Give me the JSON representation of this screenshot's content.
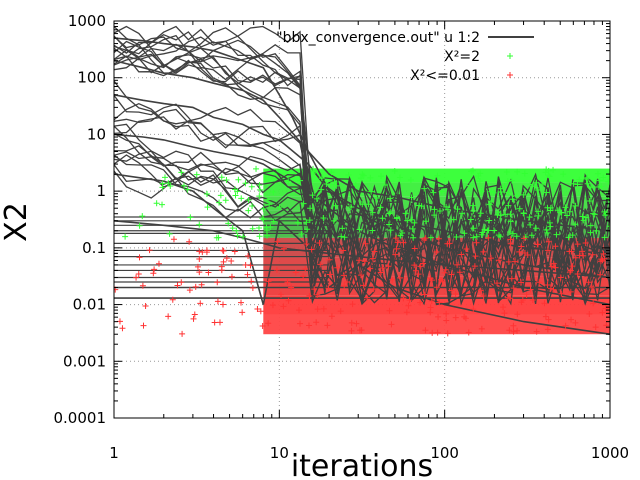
{
  "chart_data": {
    "type": "line",
    "xlabel": "iterations",
    "ylabel": "X2",
    "x_scale": "log",
    "y_scale": "log",
    "xlim": [
      1,
      1000
    ],
    "ylim": [
      0.0001,
      1000
    ],
    "grid": true,
    "legend_position": "top-right",
    "x_ticks": [
      {
        "value": 1,
        "label": "1"
      },
      {
        "value": 10,
        "label": "10"
      },
      {
        "value": 100,
        "label": "100"
      },
      {
        "value": 1000,
        "label": "1000"
      }
    ],
    "y_ticks": [
      {
        "value": 1000,
        "label": "1000"
      },
      {
        "value": 100,
        "label": "100"
      },
      {
        "value": 10,
        "label": "10"
      },
      {
        "value": 1,
        "label": "1"
      },
      {
        "value": 0.1,
        "label": "0.1"
      },
      {
        "value": 0.01,
        "label": "0.01"
      },
      {
        "value": 0.001,
        "label": "0.001"
      },
      {
        "value": 0.0001,
        "label": "0.0001"
      }
    ],
    "legend": [
      {
        "label": "\"bbx_convergence.out\" u 1:2",
        "marker": "line",
        "color": "#404040"
      },
      {
        "label": "X²=2",
        "marker": "plus",
        "color": "#33ff33"
      },
      {
        "label": "X²<=0.01",
        "marker": "plus",
        "color": "#ff3333"
      }
    ],
    "series": [
      {
        "kind": "line",
        "color": "#404040",
        "x": [
          1,
          1.5,
          2,
          3,
          4,
          6,
          8,
          10,
          12,
          15,
          20,
          30,
          50,
          100,
          300,
          1000
        ],
        "y": [
          500,
          450,
          400,
          350,
          300,
          200,
          150,
          50,
          20,
          5,
          2,
          1,
          0.8,
          0.5,
          0.3,
          0.2
        ]
      },
      {
        "kind": "line",
        "color": "#404040",
        "x": [
          1,
          1.5,
          2,
          3,
          4,
          6,
          8,
          10,
          15,
          20,
          30,
          50,
          100,
          300,
          1000
        ],
        "y": [
          200,
          150,
          120,
          100,
          80,
          60,
          40,
          20,
          5,
          1,
          0.5,
          0.3,
          0.2,
          0.1,
          0.08
        ]
      },
      {
        "kind": "line",
        "color": "#404040",
        "x": [
          1,
          1.5,
          2,
          3,
          4,
          6,
          8,
          10,
          15,
          20,
          30,
          50,
          100,
          300,
          1000
        ],
        "y": [
          50,
          40,
          35,
          30,
          20,
          15,
          10,
          8,
          3,
          1,
          0.4,
          0.2,
          0.1,
          0.05,
          0.03
        ]
      },
      {
        "kind": "line",
        "color": "#404040",
        "x": [
          1,
          1.5,
          2,
          3,
          4,
          6,
          8,
          10,
          15,
          20,
          30,
          50,
          100,
          300,
          1000
        ],
        "y": [
          10,
          9,
          8,
          6,
          5,
          4,
          3,
          2,
          1,
          0.5,
          0.2,
          0.1,
          0.05,
          0.02,
          0.01
        ]
      },
      {
        "kind": "line",
        "color": "#404040",
        "x": [
          1,
          2,
          3,
          4,
          6,
          8,
          10,
          15,
          20,
          30,
          50,
          100,
          300,
          1000
        ],
        "y": [
          2,
          1.5,
          1,
          0.5,
          0.2,
          0.01,
          0.3,
          0.1,
          0.02,
          0.05,
          0.02,
          0.01,
          0.005,
          0.003
        ]
      },
      {
        "kind": "line",
        "color": "#404040",
        "x": [
          1,
          2,
          4,
          6,
          8,
          10,
          20,
          50,
          100,
          300,
          1000
        ],
        "y": [
          0.3,
          0.25,
          0.2,
          0.15,
          0.12,
          0.1,
          0.08,
          0.06,
          0.05,
          0.04,
          0.03
        ]
      },
      {
        "kind": "line",
        "color": "#404040",
        "x": [
          1,
          1000
        ],
        "y": [
          0.02,
          0.02
        ]
      },
      {
        "kind": "line",
        "color": "#404040",
        "x": [
          1,
          1000
        ],
        "y": [
          0.013,
          0.013
        ]
      }
    ],
    "point_clouds": [
      {
        "name": "X²=2",
        "color": "#33ff33",
        "x_range": [
          1,
          1000
        ],
        "y_range": [
          0.15,
          2.5
        ]
      },
      {
        "name": "X²<=0.01",
        "color": "#ff3333",
        "x_range": [
          1,
          1000
        ],
        "y_range": [
          0.003,
          0.15
        ]
      }
    ]
  }
}
